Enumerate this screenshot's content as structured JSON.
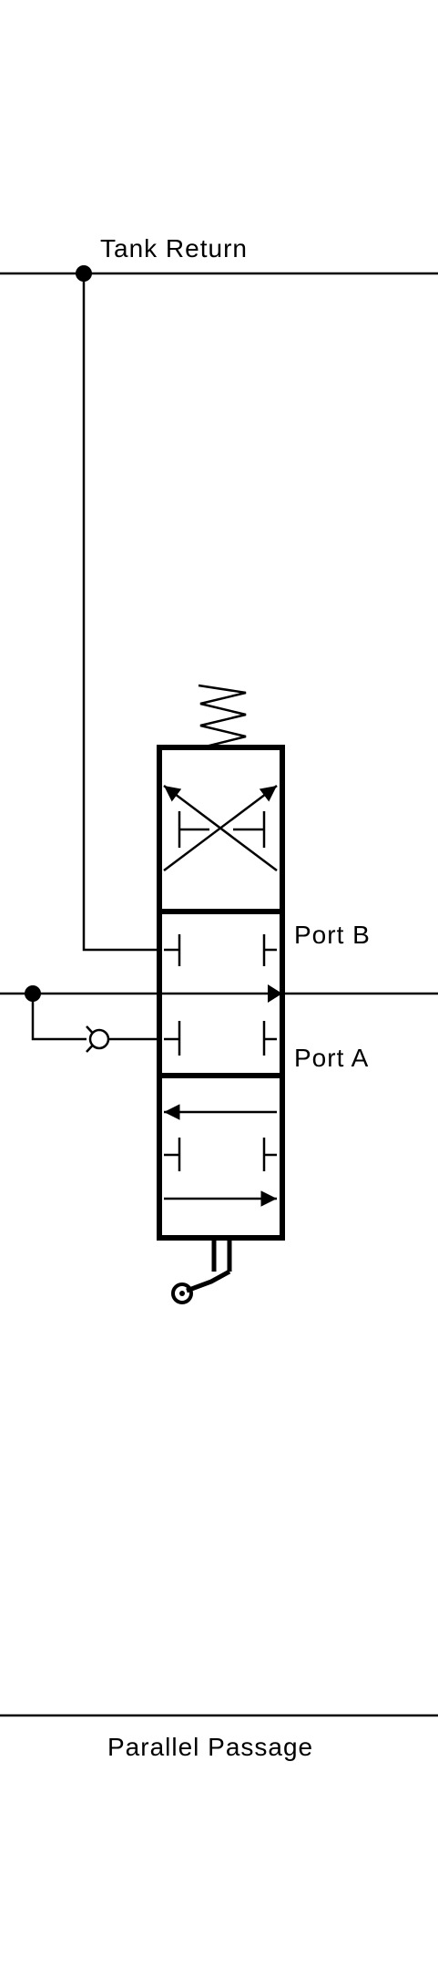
{
  "labels": {
    "tank_return": "Tank Return",
    "port_b": "Port B",
    "port_a": "Port A",
    "parallel_passage": "Parallel Passage"
  },
  "colors": {
    "line": "#000000",
    "background": "#ffffff"
  },
  "components": {
    "valve": "three-position spool valve (spring offset, lever operated)",
    "check_valve": "check valve on inlet branch"
  }
}
